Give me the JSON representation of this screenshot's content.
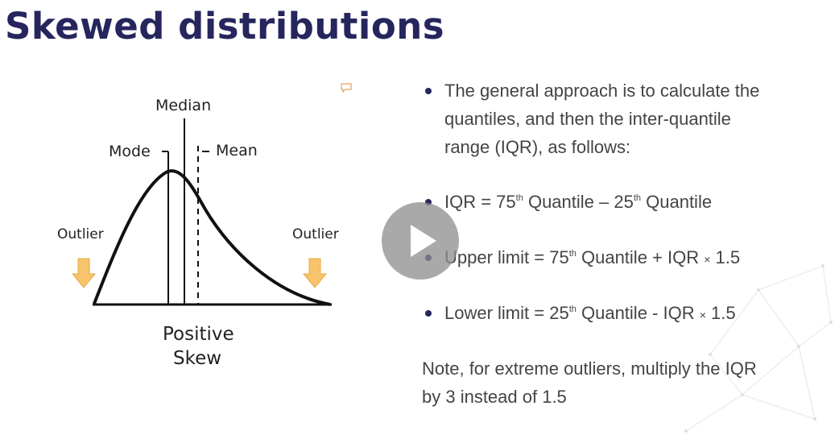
{
  "slide": {
    "title": "Skewed distributions"
  },
  "diagram": {
    "median_label": "Median",
    "mode_label": "Mode",
    "mean_label": "Mean",
    "outlier_left": "Outlier",
    "outlier_right": "Outlier",
    "caption_line1": "Positive",
    "caption_line2": "Skew"
  },
  "bullets": [
    {
      "line1": "The general approach is to calculate the",
      "line2": "quantiles, and then the inter-quantile",
      "line3": "range (IQR), as follows:"
    },
    {
      "pre": "IQR = 75",
      "sup1": "th",
      "mid": " Quantile – 25",
      "sup2": "th",
      "post": " Quantile"
    },
    {
      "pre": "Upper limit = 75",
      "sup1": "th",
      "mid": " Quantile + IQR ",
      "times": "×",
      "post": " 1.5"
    },
    {
      "pre": "Lower limit = 25",
      "sup1": "th",
      "mid": " Quantile - IQR ",
      "times": "×",
      "post": " 1.5"
    }
  ],
  "note": {
    "line1": "Note, for extreme outliers, multiply the IQR",
    "line2": "by 3 instead of 1.5"
  },
  "colors": {
    "title": "#26265e",
    "arrow": "#f7c46c",
    "play_button": "#8c8c8c"
  },
  "icons": {
    "play": "play-icon",
    "comment": "comment-icon",
    "arrow": "down-arrow-icon"
  }
}
